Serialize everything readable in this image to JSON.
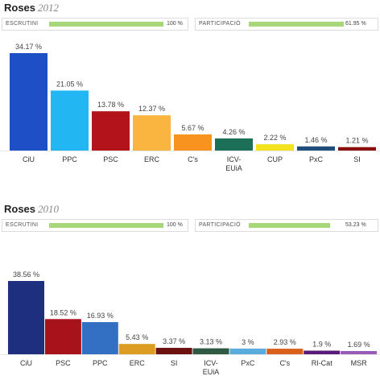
{
  "charts": [
    {
      "place": "Roses",
      "year": "2012",
      "escrutini": {
        "label": "ESCRUTINI",
        "value_text": "100 %",
        "percent": 100
      },
      "participacio": {
        "label": "PARTICIPACIÓ",
        "value_text": "61.95 %",
        "percent": 61.95
      },
      "bar_colors": [
        "#1f4fc7",
        "#22b7f2",
        "#b3131b",
        "#f9b53f",
        "#f7931e",
        "#1d7058",
        "#f2e21f",
        "#1f4e7a",
        "#8a1010"
      ]
    },
    {
      "place": "Roses",
      "year": "2010",
      "escrutini": {
        "label": "ESCRUTINI",
        "value_text": "100 %",
        "percent": 100
      },
      "participacio": {
        "label": "PARTICIPACIÓ",
        "value_text": "53.23 %",
        "percent": 53.23
      },
      "bar_colors": [
        "#1f2f7f",
        "#a8121a",
        "#3370c4",
        "#dd9d23",
        "#6d1010",
        "#2e5a44",
        "#5cabdd",
        "#d95f1d",
        "#5a1a7a",
        "#9a5ab8"
      ]
    }
  ],
  "chart_data": [
    {
      "type": "bar",
      "title": "Roses 2012",
      "categories": [
        "CiU",
        "PPC",
        "PSC",
        "ERC",
        "C's",
        "ICV-EUiA",
        "CUP",
        "PxC",
        "SI"
      ],
      "values": [
        34.17,
        21.05,
        13.78,
        12.37,
        5.67,
        4.26,
        2.22,
        1.46,
        1.21
      ],
      "value_labels": [
        "34.17 %",
        "21.05 %",
        "13.78 %",
        "12.37 %",
        "5.67 %",
        "4.26 %",
        "2.22 %",
        "1.46 %",
        "1.21 %"
      ],
      "ylim": [
        0,
        40
      ],
      "grid": false
    },
    {
      "type": "bar",
      "title": "Roses 2010",
      "categories": [
        "CiU",
        "PSC",
        "PPC",
        "ERC",
        "SI",
        "ICV-EUiA",
        "PxC",
        "C's",
        "RI-Cat",
        "MSR"
      ],
      "values": [
        38.56,
        18.52,
        16.93,
        5.43,
        3.37,
        3.13,
        3.0,
        2.93,
        1.9,
        1.69
      ],
      "value_labels": [
        "38.56 %",
        "18.52 %",
        "16.93 %",
        "5.43 %",
        "3.37 %",
        "3.13 %",
        "3 %",
        "2.93 %",
        "1.9 %",
        "1.69 %"
      ],
      "ylim": [
        0,
        40
      ],
      "grid": false
    }
  ]
}
